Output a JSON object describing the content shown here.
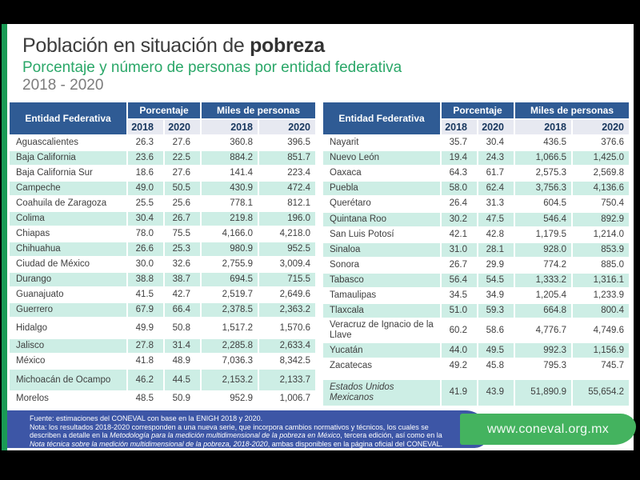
{
  "page": {
    "title_regular": "Población en situación de ",
    "title_bold": "pobreza",
    "subtitle": "Porcentaje y número de personas por entidad federativa",
    "period": "2018 - 2020"
  },
  "table_headers": {
    "entity": "Entidad Federativa",
    "percentage_group": "Porcentaje",
    "thousands_group": "Miles de personas",
    "year_cols": [
      "2018",
      "2020",
      "2018",
      "2020"
    ]
  },
  "tables": [
    {
      "rows": [
        {
          "name": "Aguascalientes",
          "pct_2018": "26.3",
          "pct_2020": "27.6",
          "miles_2018": "360.8",
          "miles_2020": "396.5"
        },
        {
          "name": "Baja California",
          "pct_2018": "23.6",
          "pct_2020": "22.5",
          "miles_2018": "884.2",
          "miles_2020": "851.7"
        },
        {
          "name": "Baja California Sur",
          "pct_2018": "18.6",
          "pct_2020": "27.6",
          "miles_2018": "141.4",
          "miles_2020": "223.4"
        },
        {
          "name": "Campeche",
          "pct_2018": "49.0",
          "pct_2020": "50.5",
          "miles_2018": "430.9",
          "miles_2020": "472.4"
        },
        {
          "name": "Coahuila de Zaragoza",
          "pct_2018": "25.5",
          "pct_2020": "25.6",
          "miles_2018": "778.1",
          "miles_2020": "812.1"
        },
        {
          "name": "Colima",
          "pct_2018": "30.4",
          "pct_2020": "26.7",
          "miles_2018": "219.8",
          "miles_2020": "196.0"
        },
        {
          "name": "Chiapas",
          "pct_2018": "78.0",
          "pct_2020": "75.5",
          "miles_2018": "4,166.0",
          "miles_2020": "4,218.0"
        },
        {
          "name": "Chihuahua",
          "pct_2018": "26.6",
          "pct_2020": "25.3",
          "miles_2018": "980.9",
          "miles_2020": "952.5"
        },
        {
          "name": "Ciudad de México",
          "pct_2018": "30.0",
          "pct_2020": "32.6",
          "miles_2018": "2,755.9",
          "miles_2020": "3,009.4"
        },
        {
          "name": "Durango",
          "pct_2018": "38.8",
          "pct_2020": "38.7",
          "miles_2018": "694.5",
          "miles_2020": "715.5"
        },
        {
          "name": "Guanajuato",
          "pct_2018": "41.5",
          "pct_2020": "42.7",
          "miles_2018": "2,519.7",
          "miles_2020": "2,649.6"
        },
        {
          "name": "Guerrero",
          "pct_2018": "67.9",
          "pct_2020": "66.4",
          "miles_2018": "2,378.5",
          "miles_2020": "2,363.2"
        },
        {
          "name": "Hidalgo",
          "pct_2018": "49.9",
          "pct_2020": "50.8",
          "miles_2018": "1,517.2",
          "miles_2020": "1,570.6"
        },
        {
          "name": "Jalisco",
          "pct_2018": "27.8",
          "pct_2020": "31.4",
          "miles_2018": "2,285.8",
          "miles_2020": "2,633.4"
        },
        {
          "name": "México",
          "pct_2018": "41.8",
          "pct_2020": "48.9",
          "miles_2018": "7,036.3",
          "miles_2020": "8,342.5"
        },
        {
          "name": "Michoacán de Ocampo",
          "pct_2018": "46.2",
          "pct_2020": "44.5",
          "miles_2018": "2,153.2",
          "miles_2020": "2,133.7"
        },
        {
          "name": "Morelos",
          "pct_2018": "48.5",
          "pct_2020": "50.9",
          "miles_2018": "952.9",
          "miles_2020": "1,006.7"
        }
      ]
    },
    {
      "rows": [
        {
          "name": "Nayarit",
          "pct_2018": "35.7",
          "pct_2020": "30.4",
          "miles_2018": "436.5",
          "miles_2020": "376.6"
        },
        {
          "name": "Nuevo León",
          "pct_2018": "19.4",
          "pct_2020": "24.3",
          "miles_2018": "1,066.5",
          "miles_2020": "1,425.0"
        },
        {
          "name": "Oaxaca",
          "pct_2018": "64.3",
          "pct_2020": "61.7",
          "miles_2018": "2,575.3",
          "miles_2020": "2,569.8"
        },
        {
          "name": "Puebla",
          "pct_2018": "58.0",
          "pct_2020": "62.4",
          "miles_2018": "3,756.3",
          "miles_2020": "4,136.6"
        },
        {
          "name": "Querétaro",
          "pct_2018": "26.4",
          "pct_2020": "31.3",
          "miles_2018": "604.5",
          "miles_2020": "750.4"
        },
        {
          "name": "Quintana Roo",
          "pct_2018": "30.2",
          "pct_2020": "47.5",
          "miles_2018": "546.4",
          "miles_2020": "892.9"
        },
        {
          "name": "San Luis Potosí",
          "pct_2018": "42.1",
          "pct_2020": "42.8",
          "miles_2018": "1,179.5",
          "miles_2020": "1,214.0"
        },
        {
          "name": "Sinaloa",
          "pct_2018": "31.0",
          "pct_2020": "28.1",
          "miles_2018": "928.0",
          "miles_2020": "853.9"
        },
        {
          "name": "Sonora",
          "pct_2018": "26.7",
          "pct_2020": "29.9",
          "miles_2018": "774.2",
          "miles_2020": "885.0"
        },
        {
          "name": "Tabasco",
          "pct_2018": "56.4",
          "pct_2020": "54.5",
          "miles_2018": "1,333.2",
          "miles_2020": "1,316.1"
        },
        {
          "name": "Tamaulipas",
          "pct_2018": "34.5",
          "pct_2020": "34.9",
          "miles_2018": "1,205.4",
          "miles_2020": "1,233.9"
        },
        {
          "name": "Tlaxcala",
          "pct_2018": "51.0",
          "pct_2020": "59.3",
          "miles_2018": "664.8",
          "miles_2020": "800.4"
        },
        {
          "name": "Veracruz de Ignacio de la Llave",
          "pct_2018": "60.2",
          "pct_2020": "58.6",
          "miles_2018": "4,776.7",
          "miles_2020": "4,749.6"
        },
        {
          "name": "Yucatán",
          "pct_2018": "44.0",
          "pct_2020": "49.5",
          "miles_2018": "992.3",
          "miles_2020": "1,156.9"
        },
        {
          "name": "Zacatecas",
          "pct_2018": "49.2",
          "pct_2020": "45.8",
          "miles_2018": "795.3",
          "miles_2020": "745.7"
        },
        {
          "name": "Estados Unidos Mexicanos",
          "pct_2018": "41.9",
          "pct_2020": "43.9",
          "miles_2018": "51,890.9",
          "miles_2020": "55,654.2",
          "summary": true
        }
      ]
    }
  ],
  "footer": {
    "source": "Fuente: estimaciones del CONEVAL con base en la ENIGH 2018 y 2020.",
    "note_1": "Nota: los resultados 2018-2020 corresponden a una nueva serie, que incorpora cambios normativos y técnicos, los cuales se describen a detalle en la ",
    "note_italic_1": "Metodología para la medición multidimensional de la pobreza en México",
    "note_2": ", tercera edición, así como en la ",
    "note_italic_2": "Nota técnica sobre la medición multidimensional de la pobreza, 2018-2020",
    "note_3": ", ambas disponibles en la página oficial del CONEVAL.",
    "website": "www.coneval.org.mx"
  },
  "colors": {
    "header_blue": "#2f5b94",
    "years_row_bg": "#e7e9f1",
    "years_text": "#17365d",
    "stripe_teal": "#cdeee5",
    "subtitle_green": "#2aa768",
    "accent_strip_green": "#1a9b55",
    "footer_blue": "#3d56a6",
    "website_green": "#44b35f",
    "background_black": "#000000"
  }
}
